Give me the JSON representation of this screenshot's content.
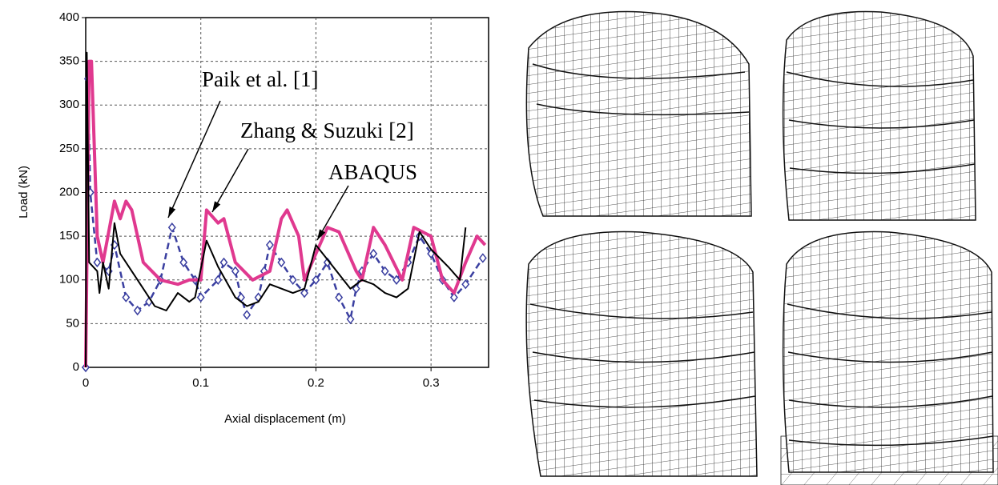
{
  "chart_data": {
    "type": "line",
    "xlabel": "Axial displacement  (m)",
    "ylabel": "Load (kN)",
    "xlim": [
      0,
      0.35
    ],
    "ylim": [
      0,
      400
    ],
    "xticks": [
      0,
      0.1,
      0.2,
      0.3
    ],
    "yticks": [
      0,
      50,
      100,
      150,
      200,
      250,
      300,
      350,
      400
    ],
    "grid": true,
    "series": [
      {
        "name": "Paik et al. [1]",
        "color": "#3a3fa0",
        "style": "dashed",
        "marker": "diamond",
        "x": [
          0,
          0.002,
          0.004,
          0.01,
          0.02,
          0.025,
          0.035,
          0.045,
          0.055,
          0.065,
          0.075,
          0.085,
          0.095,
          0.1,
          0.115,
          0.12,
          0.13,
          0.135,
          0.14,
          0.15,
          0.155,
          0.16,
          0.17,
          0.18,
          0.19,
          0.2,
          0.21,
          0.22,
          0.23,
          0.235,
          0.24,
          0.25,
          0.26,
          0.27,
          0.28,
          0.29,
          0.3,
          0.31,
          0.32,
          0.33,
          0.345
        ],
        "values": [
          0,
          330,
          200,
          120,
          110,
          140,
          80,
          65,
          75,
          100,
          160,
          120,
          100,
          80,
          100,
          120,
          110,
          80,
          60,
          80,
          110,
          140,
          120,
          100,
          85,
          100,
          120,
          80,
          55,
          90,
          110,
          130,
          110,
          100,
          120,
          150,
          130,
          100,
          80,
          95,
          125
        ]
      },
      {
        "name": "Zhang & Suzuki [2]",
        "color": "#e0398f",
        "style": "solid",
        "marker": "none",
        "x": [
          0,
          0.003,
          0.005,
          0.01,
          0.015,
          0.025,
          0.03,
          0.035,
          0.04,
          0.05,
          0.065,
          0.08,
          0.09,
          0.1,
          0.105,
          0.115,
          0.12,
          0.13,
          0.145,
          0.16,
          0.17,
          0.175,
          0.185,
          0.19,
          0.2,
          0.21,
          0.22,
          0.235,
          0.24,
          0.25,
          0.26,
          0.275,
          0.285,
          0.3,
          0.31,
          0.32,
          0.33,
          0.34,
          0.347
        ],
        "values": [
          0,
          350,
          350,
          150,
          120,
          190,
          170,
          190,
          180,
          120,
          100,
          95,
          100,
          100,
          180,
          165,
          170,
          120,
          100,
          110,
          170,
          180,
          150,
          100,
          130,
          160,
          155,
          110,
          100,
          160,
          140,
          100,
          160,
          150,
          100,
          85,
          120,
          150,
          140
        ]
      },
      {
        "name": "ABAQUS",
        "color": "#000000",
        "style": "solid",
        "marker": "none",
        "x": [
          0,
          0.001,
          0.003,
          0.01,
          0.012,
          0.015,
          0.02,
          0.025,
          0.03,
          0.04,
          0.05,
          0.06,
          0.07,
          0.08,
          0.09,
          0.095,
          0.105,
          0.115,
          0.13,
          0.14,
          0.15,
          0.16,
          0.18,
          0.19,
          0.2,
          0.215,
          0.23,
          0.24,
          0.25,
          0.26,
          0.27,
          0.28,
          0.29,
          0.3,
          0.315,
          0.325,
          0.33
        ],
        "values": [
          0,
          360,
          120,
          110,
          85,
          120,
          90,
          165,
          130,
          110,
          90,
          70,
          65,
          85,
          75,
          80,
          145,
          115,
          80,
          70,
          75,
          95,
          85,
          90,
          140,
          115,
          90,
          100,
          95,
          85,
          80,
          90,
          155,
          135,
          115,
          100,
          160
        ]
      }
    ]
  }
}
